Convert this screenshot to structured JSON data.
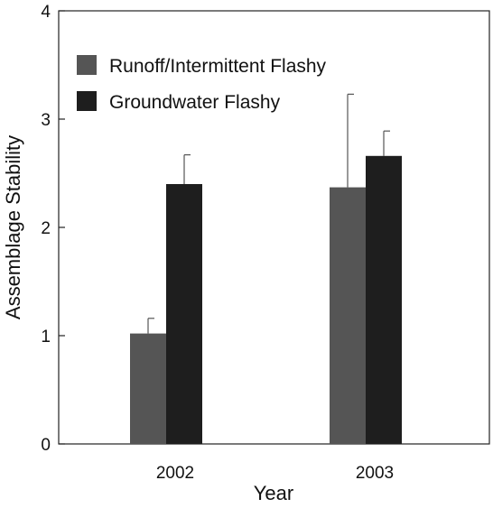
{
  "chart_data": {
    "type": "bar",
    "categories": [
      "2002",
      "2003"
    ],
    "series": [
      {
        "name": "Runoff/Intermittent Flashy",
        "color": "#555555",
        "values": [
          1.02,
          2.37
        ],
        "error_upper": [
          1.16,
          3.23
        ]
      },
      {
        "name": "Groundwater Flashy",
        "color": "#1e1e1e",
        "values": [
          2.4,
          2.66
        ],
        "error_upper": [
          2.67,
          2.89
        ]
      }
    ],
    "xlabel": "Year",
    "ylabel": "Assemblage Stability",
    "ylim": [
      0,
      4
    ],
    "yticks": [
      "0",
      "1",
      "2",
      "3",
      "4"
    ],
    "grid": false,
    "legend_position": "top-left"
  }
}
